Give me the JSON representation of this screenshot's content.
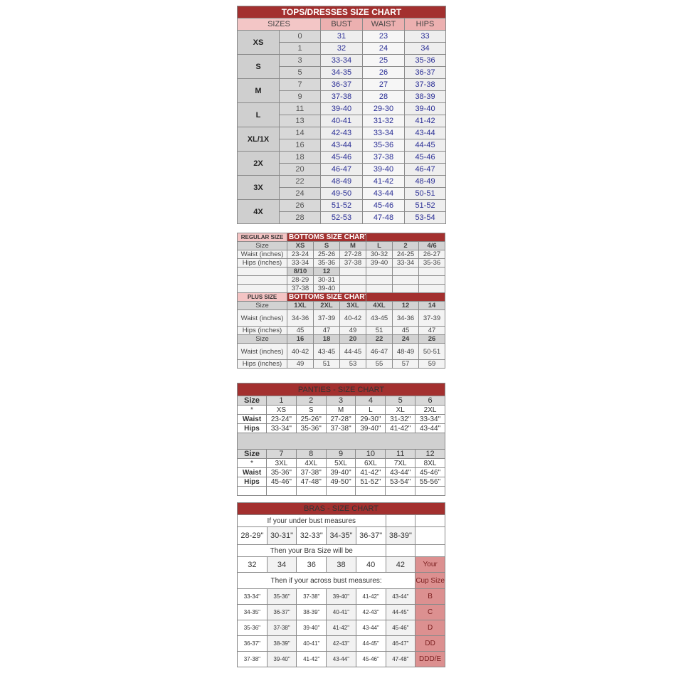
{
  "tops": {
    "title": "TOPS/DRESSES SIZE CHART",
    "headers": {
      "sizes": "SIZES",
      "bust": "BUST",
      "waist": "WAIST",
      "hips": "HIPS"
    },
    "groups": [
      {
        "label": "XS",
        "rows": [
          {
            "size": "0",
            "bust": "31",
            "waist": "23",
            "hips": "33"
          },
          {
            "size": "1",
            "bust": "32",
            "waist": "24",
            "hips": "34"
          }
        ]
      },
      {
        "label": "S",
        "rows": [
          {
            "size": "3",
            "bust": "33-34",
            "waist": "25",
            "hips": "35-36"
          },
          {
            "size": "5",
            "bust": "34-35",
            "waist": "26",
            "hips": "36-37"
          }
        ]
      },
      {
        "label": "M",
        "rows": [
          {
            "size": "7",
            "bust": "36-37",
            "waist": "27",
            "hips": "37-38"
          },
          {
            "size": "9",
            "bust": "37-38",
            "waist": "28",
            "hips": "38-39"
          }
        ]
      },
      {
        "label": "L",
        "rows": [
          {
            "size": "11",
            "bust": "39-40",
            "waist": "29-30",
            "hips": "39-40"
          },
          {
            "size": "13",
            "bust": "40-41",
            "waist": "31-32",
            "hips": "41-42"
          }
        ]
      },
      {
        "label": "XL/1X",
        "rows": [
          {
            "size": "14",
            "bust": "42-43",
            "waist": "33-34",
            "hips": "43-44"
          },
          {
            "size": "16",
            "bust": "43-44",
            "waist": "35-36",
            "hips": "44-45"
          }
        ]
      },
      {
        "label": "2X",
        "rows": [
          {
            "size": "18",
            "bust": "45-46",
            "waist": "37-38",
            "hips": "45-46"
          },
          {
            "size": "20",
            "bust": "46-47",
            "waist": "39-40",
            "hips": "46-47"
          }
        ]
      },
      {
        "label": "3X",
        "rows": [
          {
            "size": "22",
            "bust": "48-49",
            "waist": "41-42",
            "hips": "48-49"
          },
          {
            "size": "24",
            "bust": "49-50",
            "waist": "43-44",
            "hips": "50-51"
          }
        ]
      },
      {
        "label": "4X",
        "rows": [
          {
            "size": "26",
            "bust": "51-52",
            "waist": "45-46",
            "hips": "51-52"
          },
          {
            "size": "28",
            "bust": "52-53",
            "waist": "47-48",
            "hips": "53-54"
          }
        ]
      }
    ]
  },
  "bottoms": {
    "regular_label": "REGULAR SIZE",
    "title": "BOTTOMS SIZE CHART",
    "labels": {
      "size": "Size",
      "waist": "Waist (inches)",
      "hips": "Hips (inches)"
    },
    "regular": {
      "sizes": [
        "XS",
        "S",
        "M",
        "L",
        "2",
        "4/6"
      ],
      "waist": [
        "23-24",
        "25-26",
        "27-28",
        "30-32",
        "24-25",
        "26-27"
      ],
      "hips": [
        "33-34",
        "35-36",
        "37-38",
        "39-40",
        "33-34",
        "35-36"
      ],
      "extra_sizes": [
        "8/10",
        "12"
      ],
      "extra_waist": [
        "28-29",
        "30-31"
      ],
      "extra_hips": [
        "37-38",
        "39-40"
      ]
    },
    "plus_label": "PLUS SIZE",
    "plus_title": "BOTTOMS SIZE CHART",
    "plus": [
      {
        "sizes": [
          "1XL",
          "2XL",
          "3XL",
          "4XL",
          "12",
          "14"
        ],
        "waist": [
          "34-36",
          "37-39",
          "40-42",
          "43-45",
          "34-36",
          "37-39"
        ],
        "hips": [
          "45",
          "47",
          "49",
          "51",
          "45",
          "47"
        ]
      },
      {
        "sizes": [
          "16",
          "18",
          "20",
          "22",
          "24",
          "26"
        ],
        "waist": [
          "40-42",
          "43-45",
          "44-45",
          "46-47",
          "48-49",
          "50-51"
        ],
        "hips": [
          "49",
          "51",
          "53",
          "55",
          "57",
          "59"
        ]
      }
    ]
  },
  "panties": {
    "title": "PANTIES - SIZE CHART",
    "labels": {
      "size": "Size",
      "letter": "*",
      "waist": "Waist",
      "hips": "Hips"
    },
    "blocks": [
      {
        "sizes": [
          "1",
          "2",
          "3",
          "4",
          "5",
          "6"
        ],
        "letters": [
          "XS",
          "S",
          "M",
          "L",
          "XL",
          "2XL"
        ],
        "waist": [
          "23-24\"",
          "25-26\"",
          "27-28\"",
          "29-30\"",
          "31-32\"",
          "33-34\""
        ],
        "hips": [
          "33-34\"",
          "35-36\"",
          "37-38\"",
          "39-40\"",
          "41-42\"",
          "43-44\""
        ]
      },
      {
        "sizes": [
          "7",
          "8",
          "9",
          "10",
          "11",
          "12"
        ],
        "letters": [
          "3XL",
          "4XL",
          "5XL",
          "6XL",
          "7XL",
          "8XL"
        ],
        "waist": [
          "35-36\"",
          "37-38\"",
          "39-40\"",
          "41-42\"",
          "43-44\"",
          "45-46\""
        ],
        "hips": [
          "45-46\"",
          "47-48\"",
          "49-50\"",
          "51-52\"",
          "53-54\"",
          "55-56\""
        ]
      }
    ]
  },
  "bras": {
    "title": "BRAS - SIZE CHART",
    "under_prompt": "If your under bust measures",
    "under": [
      "28-29\"",
      "30-31\"",
      "32-33\"",
      "34-35\"",
      "36-37\"",
      "38-39\""
    ],
    "size_prompt": "Then your Bra Size will be",
    "sizes": [
      "32",
      "34",
      "36",
      "38",
      "40",
      "42"
    ],
    "across_prompt": "Then if your across bust measures:",
    "cup_header_1": "Your",
    "cup_header_2": "Cup Size",
    "rows": [
      {
        "values": [
          "33-34\"",
          "35-36\"",
          "37-38\"",
          "39-40\"",
          "41-42\"",
          "43-44\""
        ],
        "cup": "B"
      },
      {
        "values": [
          "34-35\"",
          "36-37\"",
          "38-39\"",
          "40-41\"",
          "42-43\"",
          "44-45\""
        ],
        "cup": "C"
      },
      {
        "values": [
          "35-36\"",
          "37-38\"",
          "39-40\"",
          "41-42\"",
          "43-44\"",
          "45-46\""
        ],
        "cup": "D"
      },
      {
        "values": [
          "36-37\"",
          "38-39\"",
          "40-41\"",
          "42-43\"",
          "44-45\"",
          "46-47\""
        ],
        "cup": "DD"
      },
      {
        "values": [
          "37-38\"",
          "39-40\"",
          "41-42\"",
          "43-44\"",
          "45-46\"",
          "47-48\""
        ],
        "cup": "DDD/E"
      }
    ]
  },
  "colors": {
    "header_red": "#a3302f",
    "header_pink": "#ecb0b0",
    "value_blue": "#2b2f96",
    "cup_pink": "#dc9090"
  }
}
